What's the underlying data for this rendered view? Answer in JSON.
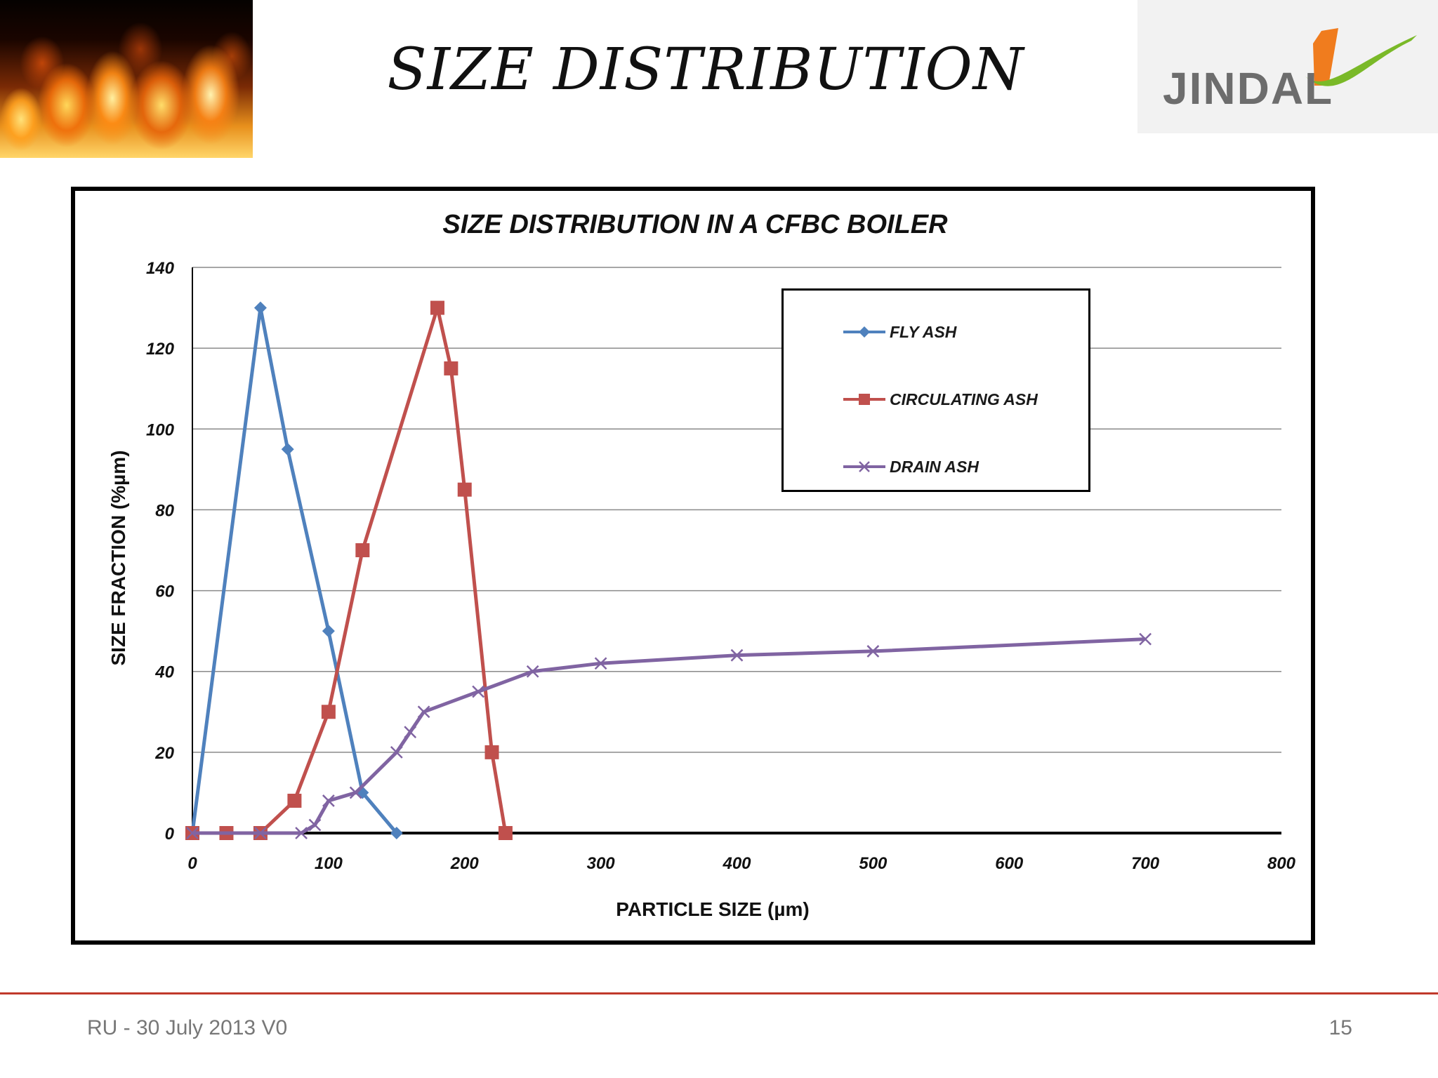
{
  "slide": {
    "title": "SIZE DISTRIBUTION",
    "logo_text": "JINDAL",
    "footer_left": "RU - 30 July 2013 V0",
    "page_number": "15"
  },
  "chart_data": {
    "type": "line",
    "title": "SIZE DISTRIBUTION IN A CFBC BOILER",
    "xlabel": "PARTICLE SIZE (µm)",
    "ylabel": "SIZE FRACTION (%µm)",
    "xlim": [
      0,
      800
    ],
    "ylim": [
      0,
      140
    ],
    "xticks": [
      0,
      100,
      200,
      300,
      400,
      500,
      600,
      700,
      800
    ],
    "yticks": [
      0,
      20,
      40,
      60,
      80,
      100,
      120,
      140
    ],
    "grid": true,
    "legend_position": "top-right",
    "series": [
      {
        "name": "FLY ASH",
        "color": "#4f81bd",
        "marker": "diamond",
        "points": [
          [
            0,
            0
          ],
          [
            50,
            130
          ],
          [
            70,
            95
          ],
          [
            100,
            50
          ],
          [
            125,
            10
          ],
          [
            150,
            0
          ]
        ]
      },
      {
        "name": "CIRCULATING ASH",
        "color": "#c0504d",
        "marker": "square",
        "points": [
          [
            0,
            0
          ],
          [
            25,
            0
          ],
          [
            50,
            0
          ],
          [
            75,
            8
          ],
          [
            100,
            30
          ],
          [
            125,
            70
          ],
          [
            180,
            130
          ],
          [
            190,
            115
          ],
          [
            200,
            85
          ],
          [
            220,
            20
          ],
          [
            230,
            0
          ]
        ]
      },
      {
        "name": "DRAIN ASH",
        "color": "#8064a2",
        "marker": "x",
        "points": [
          [
            0,
            0
          ],
          [
            50,
            0
          ],
          [
            80,
            0
          ],
          [
            90,
            2
          ],
          [
            100,
            8
          ],
          [
            120,
            10
          ],
          [
            150,
            20
          ],
          [
            160,
            25
          ],
          [
            170,
            30
          ],
          [
            210,
            35
          ],
          [
            250,
            40
          ],
          [
            300,
            42
          ],
          [
            400,
            44
          ],
          [
            500,
            45
          ],
          [
            700,
            48
          ]
        ]
      }
    ]
  }
}
